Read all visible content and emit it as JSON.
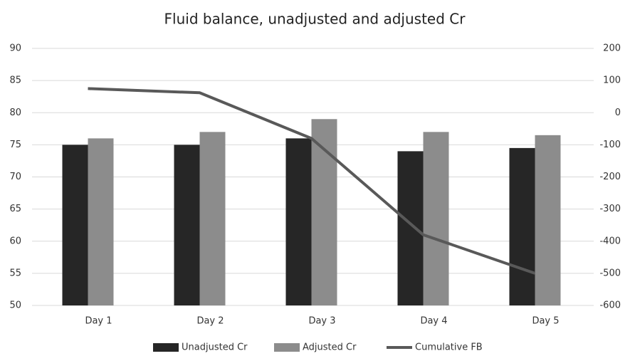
{
  "chart_data": {
    "type": "bar",
    "title": "Fluid balance, unadjusted and adjusted Cr",
    "categories": [
      "Day 1",
      "Day 2",
      "Day 3",
      "Day 4",
      "Day 5"
    ],
    "series": [
      {
        "name": "Unadjusted Cr",
        "color": "#262626",
        "values": [
          75,
          75,
          76,
          74,
          74.5
        ]
      },
      {
        "name": "Adjusted Cr",
        "color": "#8c8c8c",
        "values": [
          76,
          77,
          79,
          77,
          76.5
        ]
      },
      {
        "name": "Cumulative FB",
        "color": "#595959",
        "type": "line",
        "axis": "y2",
        "values": [
          75,
          62,
          -80,
          -380,
          -500
        ]
      }
    ],
    "ylim": [
      50,
      90
    ],
    "yticks": [
      50,
      55,
      60,
      65,
      70,
      75,
      80,
      85,
      90
    ],
    "y2lim": [
      -600,
      200
    ],
    "y2ticks": [
      -600,
      -500,
      -400,
      -300,
      -200,
      -100,
      0,
      100,
      200
    ],
    "grid": true,
    "legend": "bottom"
  }
}
